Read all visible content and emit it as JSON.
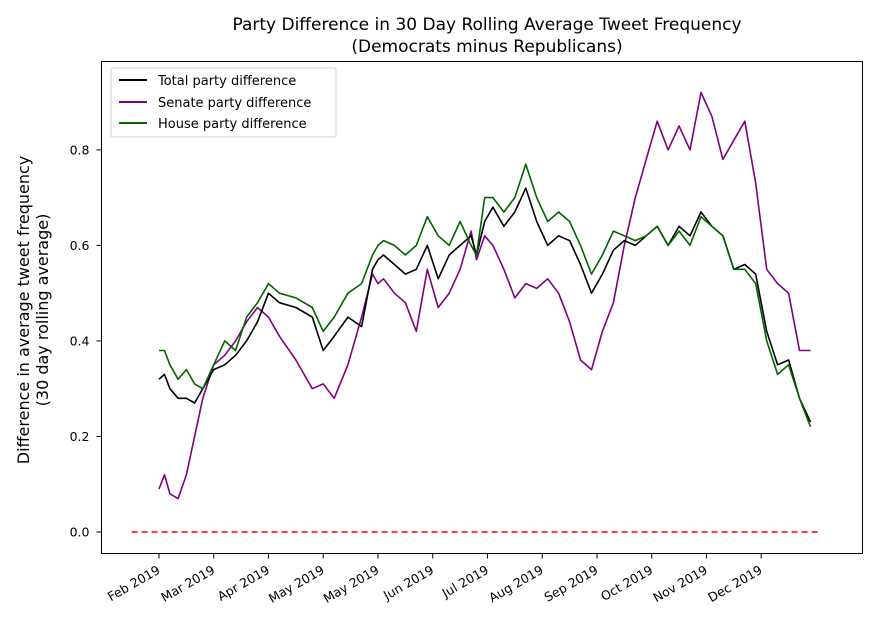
{
  "chart_data": {
    "type": "line",
    "title": "Party Difference in 30 Day Rolling Average Tweet Frequency",
    "subtitle": "(Democrats minus Republicans)",
    "ylabel_line1": "Difference in average tweet frequency",
    "ylabel_line2": "(30 day rolling average)",
    "xlabel": "",
    "ylim": [
      -0.045,
      0.985
    ],
    "xlim": [
      -1.05,
      12.85
    ],
    "grid": false,
    "legend_position": "top-left",
    "y_ticks": [
      0.0,
      0.2,
      0.4,
      0.6,
      0.8
    ],
    "y_tick_labels": [
      "0.0",
      "0.2",
      "0.4",
      "0.6",
      "0.8"
    ],
    "x_ticks": [
      0,
      1,
      2,
      3,
      4,
      5,
      6,
      7,
      8,
      9,
      10,
      11
    ],
    "x_tick_labels": [
      "Feb 2019",
      "Mar 2019",
      "Apr 2019",
      "May 2019",
      "May 2019",
      "Jun 2019",
      "Jul 2019",
      "Aug 2019",
      "Sep 2019",
      "Oct 2019",
      "Nov 2019",
      "Dec 2019"
    ],
    "zero_line": {
      "y": 0.0,
      "x_start": -0.5,
      "x_end": 12.1,
      "color": "#ff0000",
      "style": "dashed"
    },
    "series": [
      {
        "name": "Total party difference",
        "color": "#000000",
        "x": [
          0.0,
          0.1,
          0.2,
          0.35,
          0.5,
          0.65,
          0.8,
          1.0,
          1.2,
          1.4,
          1.6,
          1.8,
          2.0,
          2.2,
          2.5,
          2.8,
          3.0,
          3.2,
          3.45,
          3.7,
          3.9,
          4.0,
          4.1,
          4.3,
          4.5,
          4.7,
          4.9,
          5.1,
          5.3,
          5.5,
          5.7,
          5.8,
          5.95,
          6.1,
          6.3,
          6.5,
          6.7,
          6.9,
          7.1,
          7.3,
          7.5,
          7.7,
          7.9,
          8.1,
          8.3,
          8.5,
          8.7,
          8.9,
          9.1,
          9.3,
          9.5,
          9.7,
          9.9,
          10.1,
          10.3,
          10.5,
          10.7,
          10.9,
          11.1,
          11.3,
          11.5,
          11.7,
          11.9
        ],
        "y": [
          0.32,
          0.33,
          0.3,
          0.28,
          0.28,
          0.27,
          0.3,
          0.34,
          0.35,
          0.37,
          0.4,
          0.44,
          0.5,
          0.48,
          0.47,
          0.45,
          0.38,
          0.41,
          0.45,
          0.43,
          0.55,
          0.57,
          0.58,
          0.56,
          0.54,
          0.55,
          0.6,
          0.53,
          0.58,
          0.6,
          0.62,
          0.58,
          0.65,
          0.68,
          0.64,
          0.67,
          0.72,
          0.65,
          0.6,
          0.62,
          0.61,
          0.56,
          0.5,
          0.54,
          0.59,
          0.61,
          0.6,
          0.62,
          0.64,
          0.6,
          0.64,
          0.62,
          0.67,
          0.64,
          0.62,
          0.55,
          0.56,
          0.54,
          0.42,
          0.35,
          0.36,
          0.28,
          0.23
        ]
      },
      {
        "name": "Senate party difference",
        "color": "#800080",
        "x": [
          0.0,
          0.1,
          0.2,
          0.35,
          0.5,
          0.65,
          0.8,
          1.0,
          1.2,
          1.4,
          1.6,
          1.8,
          2.0,
          2.2,
          2.5,
          2.8,
          3.0,
          3.2,
          3.45,
          3.7,
          3.9,
          4.0,
          4.1,
          4.3,
          4.5,
          4.7,
          4.9,
          5.1,
          5.3,
          5.5,
          5.7,
          5.8,
          5.95,
          6.1,
          6.3,
          6.5,
          6.7,
          6.9,
          7.1,
          7.3,
          7.5,
          7.7,
          7.9,
          8.1,
          8.3,
          8.5,
          8.7,
          8.9,
          9.1,
          9.3,
          9.5,
          9.7,
          9.9,
          10.1,
          10.3,
          10.5,
          10.7,
          10.9,
          11.1,
          11.3,
          11.5,
          11.7,
          11.9
        ],
        "y": [
          0.09,
          0.12,
          0.08,
          0.07,
          0.12,
          0.2,
          0.28,
          0.35,
          0.37,
          0.4,
          0.44,
          0.47,
          0.45,
          0.41,
          0.36,
          0.3,
          0.31,
          0.28,
          0.35,
          0.45,
          0.54,
          0.52,
          0.53,
          0.5,
          0.48,
          0.42,
          0.55,
          0.47,
          0.5,
          0.55,
          0.63,
          0.57,
          0.62,
          0.6,
          0.55,
          0.49,
          0.52,
          0.51,
          0.53,
          0.5,
          0.44,
          0.36,
          0.34,
          0.42,
          0.48,
          0.6,
          0.7,
          0.78,
          0.86,
          0.8,
          0.85,
          0.8,
          0.92,
          0.87,
          0.78,
          0.82,
          0.86,
          0.73,
          0.55,
          0.52,
          0.5,
          0.38,
          0.38
        ]
      },
      {
        "name": "House party difference",
        "color": "#006400",
        "x": [
          0.0,
          0.1,
          0.2,
          0.35,
          0.5,
          0.65,
          0.8,
          1.0,
          1.2,
          1.4,
          1.6,
          1.8,
          2.0,
          2.2,
          2.5,
          2.8,
          3.0,
          3.2,
          3.45,
          3.7,
          3.9,
          4.0,
          4.1,
          4.3,
          4.5,
          4.7,
          4.9,
          5.1,
          5.3,
          5.5,
          5.7,
          5.8,
          5.95,
          6.1,
          6.3,
          6.5,
          6.7,
          6.9,
          7.1,
          7.3,
          7.5,
          7.7,
          7.9,
          8.1,
          8.3,
          8.5,
          8.7,
          8.9,
          9.1,
          9.3,
          9.5,
          9.7,
          9.9,
          10.1,
          10.3,
          10.5,
          10.7,
          10.9,
          11.1,
          11.3,
          11.5,
          11.7,
          11.9
        ],
        "y": [
          0.38,
          0.38,
          0.35,
          0.32,
          0.34,
          0.31,
          0.3,
          0.35,
          0.4,
          0.38,
          0.45,
          0.48,
          0.52,
          0.5,
          0.49,
          0.47,
          0.42,
          0.45,
          0.5,
          0.52,
          0.58,
          0.6,
          0.61,
          0.6,
          0.58,
          0.6,
          0.66,
          0.62,
          0.6,
          0.65,
          0.6,
          0.58,
          0.7,
          0.7,
          0.67,
          0.7,
          0.77,
          0.7,
          0.65,
          0.67,
          0.65,
          0.6,
          0.54,
          0.58,
          0.63,
          0.62,
          0.61,
          0.62,
          0.64,
          0.6,
          0.63,
          0.6,
          0.66,
          0.64,
          0.62,
          0.55,
          0.55,
          0.52,
          0.4,
          0.33,
          0.35,
          0.28,
          0.22
        ]
      }
    ]
  }
}
